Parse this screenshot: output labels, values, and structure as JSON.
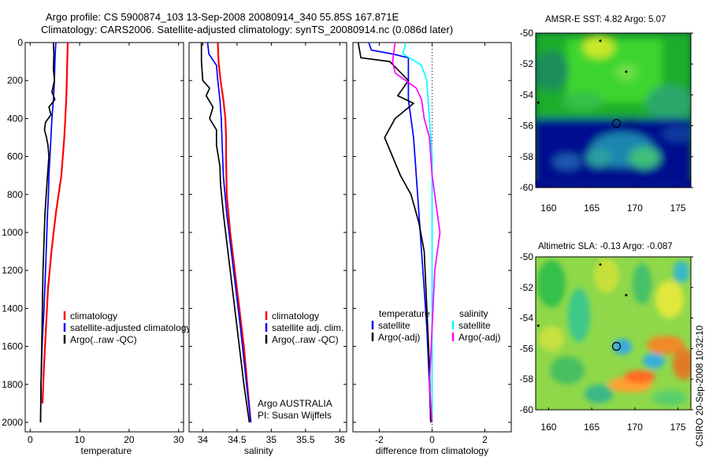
{
  "header": {
    "line1": "Argo profile: CS 5900874_103 13-Sep-2008 20080914_340 55.85S 167.871E",
    "line2": "Climatology: CARS2006. Satellite-adjusted climatology: synTS_20080914.nc (0.086d later)"
  },
  "footer_credit": "CSIRO 20-Sep-2008 10:32:10",
  "colors": {
    "climatology": "#ff0000",
    "satellite": "#0000ff",
    "argo": "#000000",
    "argo_salinity_diff": "#ff00ff",
    "satellite_salinity_diff": "#00ffff"
  },
  "chart_data": [
    {
      "id": "temperature",
      "type": "line",
      "xlabel": "temperature",
      "ylabel": "",
      "xlim": [
        -1,
        31
      ],
      "ylim": [
        2050,
        0
      ],
      "xticks": [
        0,
        10,
        20,
        30
      ],
      "yticks": [
        0,
        200,
        400,
        600,
        800,
        1000,
        1200,
        1400,
        1600,
        1800,
        2000
      ],
      "series": [
        {
          "name": "climatology",
          "color": "#ff0000",
          "x": [
            7.6,
            7.5,
            7.4,
            7.3,
            7.1,
            6.9,
            6.3,
            5.2,
            4.3,
            3.6,
            3.2,
            2.8,
            2.5
          ],
          "y": [
            0,
            100,
            200,
            300,
            400,
            500,
            700,
            900,
            1100,
            1300,
            1500,
            1700,
            1900
          ]
        },
        {
          "name": "satellite-adjusted climatology",
          "color": "#0000ff",
          "x": [
            5.2,
            5.1,
            5.0,
            4.9,
            4.7,
            4.4,
            4.2,
            4.0,
            3.8,
            3.7,
            3.5,
            3.1,
            2.8,
            2.4,
            2.2,
            2.1
          ],
          "y": [
            0,
            40,
            100,
            200,
            300,
            400,
            500,
            600,
            700,
            800,
            900,
            1200,
            1400,
            1600,
            1800,
            2000
          ]
        },
        {
          "name": "Argo(..raw -QC)",
          "color": "#000000",
          "x": [
            4.7,
            4.8,
            4.7,
            4.9,
            4.4,
            5.0,
            3.8,
            4.2,
            3.1,
            2.9,
            3.3,
            3.6,
            3.8,
            3.5,
            3.0,
            2.6,
            2.4,
            2.2,
            2.1
          ],
          "y": [
            0,
            60,
            140,
            200,
            260,
            300,
            340,
            380,
            420,
            460,
            500,
            540,
            600,
            700,
            900,
            1200,
            1500,
            1800,
            2000
          ]
        }
      ],
      "legend": [
        "climatology",
        "satellite-adjusted climatology",
        "Argo(..raw -QC)"
      ]
    },
    {
      "id": "salinity",
      "type": "line",
      "xlabel": "salinity",
      "xlim": [
        33.8,
        36.1
      ],
      "ylim": [
        2050,
        0
      ],
      "xticks": [
        34,
        34.5,
        35,
        35.5,
        36
      ],
      "series": [
        {
          "name": "climatology",
          "color": "#ff0000",
          "x": [
            34.22,
            34.23,
            34.26,
            34.3,
            34.33,
            34.34,
            34.34,
            34.35,
            34.4,
            34.5,
            34.6,
            34.65,
            34.7
          ],
          "y": [
            0,
            100,
            200,
            300,
            400,
            500,
            600,
            800,
            1000,
            1300,
            1600,
            1800,
            2000
          ]
        },
        {
          "name": "satellite adj. clim.",
          "color": "#0000ff",
          "x": [
            34.07,
            34.09,
            34.2,
            34.22,
            34.25,
            34.27,
            34.28,
            34.3,
            34.35,
            34.45,
            34.55,
            34.64,
            34.7
          ],
          "y": [
            0,
            60,
            120,
            200,
            300,
            400,
            500,
            700,
            900,
            1200,
            1500,
            1800,
            2000
          ]
        },
        {
          "name": "Argo(..raw -QC)",
          "color": "#000000",
          "x": [
            33.98,
            33.98,
            34.0,
            34.1,
            34.05,
            34.15,
            34.1,
            34.2,
            34.2,
            34.25,
            34.26,
            34.3,
            34.4,
            34.5,
            34.6,
            34.68
          ],
          "y": [
            0,
            100,
            200,
            240,
            280,
            340,
            400,
            460,
            540,
            650,
            750,
            900,
            1200,
            1500,
            1800,
            2000
          ]
        }
      ],
      "legend": [
        "climatology",
        "satellite adj. clim.",
        "Argo(..raw -QC)"
      ],
      "annotations": [
        "Argo AUSTRALIA",
        "PI: Susan Wijffels"
      ]
    },
    {
      "id": "difference",
      "type": "line",
      "xlabel": "difference from climatology",
      "xlim": [
        -3,
        3
      ],
      "ylim": [
        2050,
        0
      ],
      "xticks": [
        -2,
        0,
        2
      ],
      "zero_line": "dotted",
      "series": [
        {
          "name": "temperature satellite",
          "color": "#0000ff",
          "x": [
            -2.4,
            -2.3,
            -1.5,
            -0.9,
            -0.9,
            -0.7,
            -0.6,
            -0.5,
            -0.4,
            -0.3,
            -0.2,
            -0.1,
            -0.05
          ],
          "y": [
            0,
            40,
            60,
            80,
            300,
            500,
            700,
            900,
            1100,
            1300,
            1500,
            1800,
            2000
          ]
        },
        {
          "name": "temperature Argo(-adj)",
          "color": "#000000",
          "x": [
            -2.8,
            -2.7,
            -1.6,
            -0.9,
            -1.3,
            -0.7,
            -1.4,
            -1.8,
            -1.2,
            -0.8,
            -0.5,
            -0.3,
            -0.2,
            -0.1,
            -0.05
          ],
          "y": [
            0,
            80,
            100,
            200,
            280,
            320,
            400,
            500,
            700,
            800,
            950,
            1100,
            1400,
            1700,
            2000
          ]
        },
        {
          "name": "salinity satellite",
          "color": "#00ffff",
          "x": [
            -1.0,
            -1.1,
            -0.4,
            -0.2,
            -0.1,
            0.0,
            0.0,
            0.0,
            0.0
          ],
          "y": [
            0,
            60,
            120,
            200,
            400,
            600,
            1000,
            1500,
            2000
          ]
        },
        {
          "name": "salinity Argo(-adj)",
          "color": "#ff00ff",
          "x": [
            -1.4,
            -1.5,
            -1.4,
            -1.0,
            -0.6,
            -0.4,
            -0.3,
            -0.1,
            0.0,
            0.3,
            0.1,
            0.0,
            -0.1,
            0.0
          ],
          "y": [
            0,
            100,
            160,
            200,
            240,
            300,
            400,
            500,
            700,
            1000,
            1200,
            1500,
            1800,
            2000
          ]
        }
      ],
      "legend_headers": [
        "temperature",
        "salinity"
      ],
      "legend": [
        "satellite",
        "Argo(-adj)",
        "satellite",
        "Argo(-adj)"
      ]
    }
  ],
  "maps": [
    {
      "id": "sst",
      "title": "AMSR-E SST: 4.82 Argo: 5.07",
      "xticks": [
        160,
        165,
        170,
        175
      ],
      "yticks": [
        -50,
        -52,
        -54,
        -56,
        -58,
        -60
      ],
      "xlim": [
        158.5,
        176.5
      ],
      "ylim": [
        -60,
        -50
      ],
      "profile_location": [
        167.871,
        -55.85
      ]
    },
    {
      "id": "sla",
      "title": "Altimetric SLA: -0.13 Argo: -0.087",
      "xticks": [
        160,
        165,
        170,
        175
      ],
      "yticks": [
        -50,
        -52,
        -54,
        -56,
        -58,
        -60
      ],
      "xlim": [
        158.5,
        176.5
      ],
      "ylim": [
        -60,
        -50
      ],
      "profile_location": [
        167.871,
        -55.85
      ]
    }
  ]
}
